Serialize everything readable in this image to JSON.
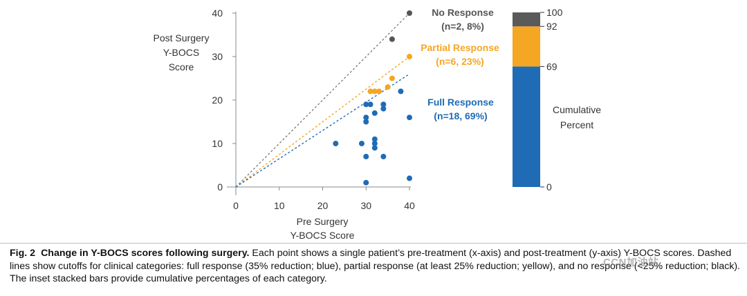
{
  "chart_data": [
    {
      "type": "scatter",
      "title": "",
      "ylabel_lines": [
        "Post Surgery",
        "Y-BOCS",
        "Score"
      ],
      "xlabel_lines": [
        "Pre Surgery",
        "Y-BOCS Score"
      ],
      "xlim": [
        0,
        40
      ],
      "ylim": [
        0,
        40
      ],
      "xticks": [
        "0",
        "10",
        "20",
        "30",
        "40"
      ],
      "yticks": [
        "0",
        "10",
        "20",
        "30",
        "40"
      ],
      "grid": false,
      "lines": [
        {
          "name": "no-response-cutoff",
          "color": "#7f7f7f",
          "x": [
            0,
            40
          ],
          "y": [
            0,
            40
          ]
        },
        {
          "name": "partial-response-cutoff",
          "color": "#f5a623",
          "x": [
            0,
            40
          ],
          "y": [
            0,
            30
          ]
        },
        {
          "name": "full-response-cutoff",
          "color": "#1f6bb5",
          "x": [
            0,
            40
          ],
          "y": [
            0,
            26
          ]
        }
      ],
      "series": [
        {
          "category": "no-response",
          "color": "#555555",
          "points": [
            [
              40,
              40
            ],
            [
              36,
              34
            ]
          ]
        },
        {
          "category": "partial-response",
          "color": "#f5a623",
          "points": [
            [
              40,
              30
            ],
            [
              36,
              25
            ],
            [
              35,
              23
            ],
            [
              31,
              22
            ],
            [
              32,
              22
            ],
            [
              33,
              22
            ]
          ]
        },
        {
          "category": "full-response",
          "color": "#1f6bb5",
          "points": [
            [
              38,
              22
            ],
            [
              30,
              19
            ],
            [
              31,
              19
            ],
            [
              34,
              19
            ],
            [
              34,
              18
            ],
            [
              32,
              17
            ],
            [
              30,
              16
            ],
            [
              40,
              16
            ],
            [
              30,
              15
            ],
            [
              32,
              11
            ],
            [
              32,
              10
            ],
            [
              23,
              10
            ],
            [
              29,
              10
            ],
            [
              32,
              9
            ],
            [
              30,
              7
            ],
            [
              34,
              7
            ],
            [
              30,
              1
            ],
            [
              40,
              2
            ]
          ]
        }
      ],
      "annotations": [
        {
          "key": "no-response",
          "lines": [
            "No Response",
            "(n=2, 8%)"
          ],
          "color": "#555555"
        },
        {
          "key": "partial-response",
          "lines": [
            "Partial Response",
            "(n=6, 23%)"
          ],
          "color": "#f5a623"
        },
        {
          "key": "full-response",
          "lines": [
            "Full Response",
            "(n=18, 69%)"
          ],
          "color": "#1f6bb5"
        }
      ]
    },
    {
      "type": "bar",
      "stacked": true,
      "label_lines": [
        "Cumulative",
        "Percent"
      ],
      "ylim": [
        0,
        100
      ],
      "tick_values": [
        0,
        69,
        92,
        100
      ],
      "segments": [
        {
          "category": "full-response",
          "from": 0,
          "to": 69,
          "color": "#1f6bb5"
        },
        {
          "category": "partial-response",
          "from": 69,
          "to": 92,
          "color": "#f5a623"
        },
        {
          "category": "no-response",
          "from": 92,
          "to": 100,
          "color": "#5a5a5a"
        }
      ]
    }
  ],
  "caption": {
    "label": "Fig. 2",
    "title": "Change in Y-BOCS scores following surgery.",
    "body": " Each point shows a single patient’s pre-treatment (x-axis) and post-treatment (y-axis) Y-BOCS scores. Dashed lines show cutoffs for clinical categories: full response (35% reduction; blue), partial response (at least 25% reduction; yellow), and no response (<25% reduction; black). The inset stacked bars provide cumulative percentages of each category."
  },
  "watermark": "CCN加油站"
}
